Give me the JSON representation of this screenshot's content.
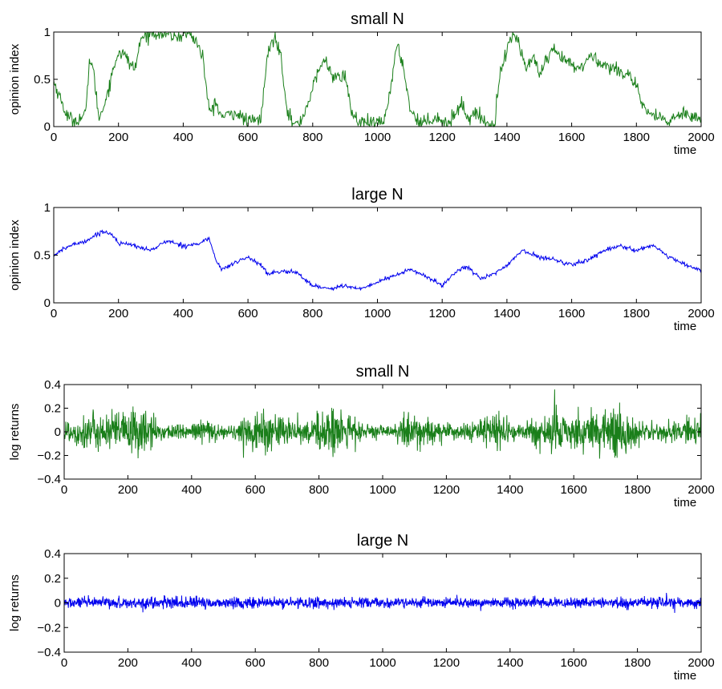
{
  "chart_data": [
    {
      "type": "line",
      "title": "small N",
      "xlabel": "time",
      "ylabel": "opinion index",
      "xlim": [
        0,
        2000
      ],
      "ylim": [
        0,
        1
      ],
      "xticks": [
        "0",
        "200",
        "400",
        "600",
        "800",
        "1000",
        "1200",
        "1400",
        "1600",
        "1800",
        "2000"
      ],
      "yticks": [
        "0",
        "0.5",
        "1"
      ],
      "color": "#1a7f1a",
      "series": [
        {
          "x": [
            0,
            20,
            40,
            60,
            80,
            100,
            110,
            120,
            140,
            160,
            180,
            200,
            220,
            250,
            270,
            300,
            340,
            380,
            420,
            440,
            460,
            480,
            500,
            520,
            560,
            600,
            640,
            660,
            680,
            700,
            720,
            740,
            760,
            780,
            800,
            820,
            840,
            860,
            880,
            900,
            920,
            940,
            980,
            1020,
            1040,
            1060,
            1080,
            1100,
            1120,
            1140,
            1180,
            1220,
            1260,
            1280,
            1300,
            1340,
            1360,
            1380,
            1400,
            1420,
            1440,
            1460,
            1480,
            1500,
            1540,
            1580,
            1620,
            1660,
            1700,
            1740,
            1780,
            1800,
            1820,
            1860,
            1900,
            1940,
            1980,
            2000
          ],
          "y": [
            0.48,
            0.3,
            0.12,
            0.06,
            0.08,
            0.15,
            0.72,
            0.65,
            0.08,
            0.28,
            0.55,
            0.8,
            0.75,
            0.6,
            0.93,
            1.0,
            0.98,
            0.95,
            0.99,
            0.9,
            0.75,
            0.15,
            0.25,
            0.1,
            0.15,
            0.05,
            0.08,
            0.75,
            0.95,
            0.8,
            0.2,
            0.02,
            0.03,
            0.2,
            0.4,
            0.62,
            0.7,
            0.55,
            0.5,
            0.55,
            0.15,
            0.05,
            0.03,
            0.05,
            0.4,
            0.85,
            0.65,
            0.2,
            0.08,
            0.04,
            0.1,
            0.03,
            0.25,
            0.08,
            0.15,
            0.03,
            0.01,
            0.6,
            0.8,
            1.0,
            0.85,
            0.6,
            0.75,
            0.55,
            0.8,
            0.7,
            0.6,
            0.75,
            0.65,
            0.6,
            0.55,
            0.4,
            0.2,
            0.1,
            0.05,
            0.15,
            0.12,
            0.05
          ]
        }
      ]
    },
    {
      "type": "line",
      "title": "large N",
      "xlabel": "time",
      "ylabel": "opinion index",
      "xlim": [
        0,
        2000
      ],
      "ylim": [
        0,
        1
      ],
      "xticks": [
        "0",
        "200",
        "400",
        "600",
        "800",
        "1000",
        "1200",
        "1400",
        "1600",
        "1800",
        "2000"
      ],
      "yticks": [
        "0",
        "0.5",
        "1"
      ],
      "color": "#0000ee",
      "series": [
        {
          "x": [
            0,
            50,
            100,
            150,
            180,
            200,
            250,
            300,
            350,
            400,
            450,
            480,
            500,
            520,
            560,
            600,
            640,
            660,
            700,
            750,
            800,
            850,
            900,
            950,
            1000,
            1050,
            1100,
            1150,
            1200,
            1250,
            1280,
            1320,
            1360,
            1400,
            1450,
            1500,
            1550,
            1600,
            1650,
            1700,
            1750,
            1800,
            1850,
            1900,
            1950,
            2000
          ],
          "y": [
            0.5,
            0.6,
            0.65,
            0.75,
            0.72,
            0.63,
            0.6,
            0.55,
            0.65,
            0.6,
            0.62,
            0.68,
            0.45,
            0.35,
            0.42,
            0.48,
            0.4,
            0.3,
            0.33,
            0.32,
            0.18,
            0.15,
            0.18,
            0.14,
            0.22,
            0.28,
            0.35,
            0.28,
            0.18,
            0.35,
            0.38,
            0.25,
            0.3,
            0.4,
            0.55,
            0.48,
            0.45,
            0.4,
            0.45,
            0.55,
            0.6,
            0.55,
            0.6,
            0.48,
            0.4,
            0.34
          ]
        }
      ]
    },
    {
      "type": "line",
      "title": "small N",
      "xlabel": "time",
      "ylabel": "log returns",
      "xlim": [
        0,
        2000
      ],
      "ylim": [
        -0.4,
        0.4
      ],
      "xticks": [
        "0",
        "200",
        "400",
        "600",
        "800",
        "1000",
        "1200",
        "1400",
        "1600",
        "1800",
        "2000"
      ],
      "yticks": [
        "−0.4",
        "−0.2",
        "0",
        "0.2",
        "0.4"
      ],
      "color": "#1a7f1a",
      "amplitude_envelope": {
        "x": [
          0,
          100,
          200,
          260,
          300,
          400,
          440,
          480,
          520,
          560,
          620,
          660,
          700,
          760,
          800,
          840,
          900,
          940,
          1000,
          1040,
          1080,
          1120,
          1180,
          1240,
          1280,
          1320,
          1360,
          1400,
          1440,
          1480,
          1520,
          1560,
          1640,
          1700,
          1760,
          1800,
          1840,
          1900,
          1960,
          2000
        ],
        "std": [
          0.06,
          0.075,
          0.1,
          0.09,
          0.035,
          0.03,
          0.07,
          0.03,
          0.025,
          0.065,
          0.09,
          0.075,
          0.07,
          0.035,
          0.09,
          0.1,
          0.085,
          0.03,
          0.025,
          0.03,
          0.085,
          0.075,
          0.035,
          0.03,
          0.04,
          0.06,
          0.08,
          0.04,
          0.03,
          0.07,
          0.09,
          0.085,
          0.1,
          0.11,
          0.1,
          0.06,
          0.03,
          0.04,
          0.06,
          0.055
        ]
      }
    },
    {
      "type": "line",
      "title": "large N",
      "xlabel": "time",
      "ylabel": "log returns",
      "xlim": [
        0,
        2000
      ],
      "ylim": [
        -0.4,
        0.4
      ],
      "xticks": [
        "0",
        "200",
        "400",
        "600",
        "800",
        "1000",
        "1200",
        "1400",
        "1600",
        "1800",
        "2000"
      ],
      "yticks": [
        "−0.4",
        "−0.2",
        "0",
        "0.2",
        "0.4"
      ],
      "color": "#0000ee",
      "amplitude_envelope": {
        "x": [
          0,
          500,
          1000,
          1500,
          2000
        ],
        "std": [
          0.022,
          0.024,
          0.02,
          0.021,
          0.022
        ]
      }
    }
  ]
}
